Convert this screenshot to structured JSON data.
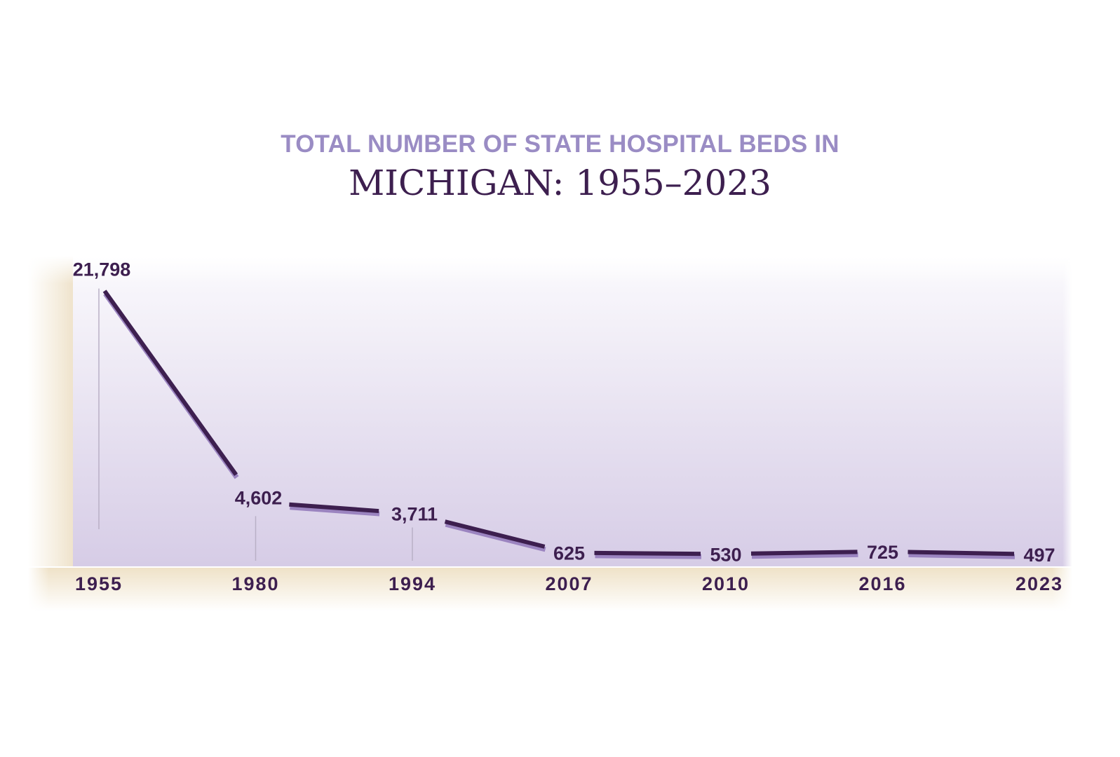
{
  "chart_data": {
    "type": "line",
    "title": "MICHIGAN: 1955–2023",
    "subtitle": "TOTAL NUMBER OF STATE HOSPITAL BEDS IN",
    "xlabel": "",
    "ylabel": "",
    "categories": [
      "1955",
      "1980",
      "1994",
      "2007",
      "2010",
      "2016",
      "2023"
    ],
    "values": [
      21798,
      4602,
      3711,
      625,
      530,
      725,
      497
    ],
    "data_labels": [
      "21,798",
      "4,602",
      "3,711",
      "625",
      "530",
      "725",
      "497"
    ],
    "ylim": [
      0,
      22000
    ],
    "grid": false,
    "legend": "none",
    "colors": {
      "line": "#3d1f4f",
      "line_shadow": "#9b84c0",
      "title": "#3d1f4f",
      "subtitle": "#9a8cc4",
      "axis_band": "#f4ead8",
      "plot_top": "#f7f5fb",
      "plot_bottom": "#d9cfe7"
    }
  }
}
